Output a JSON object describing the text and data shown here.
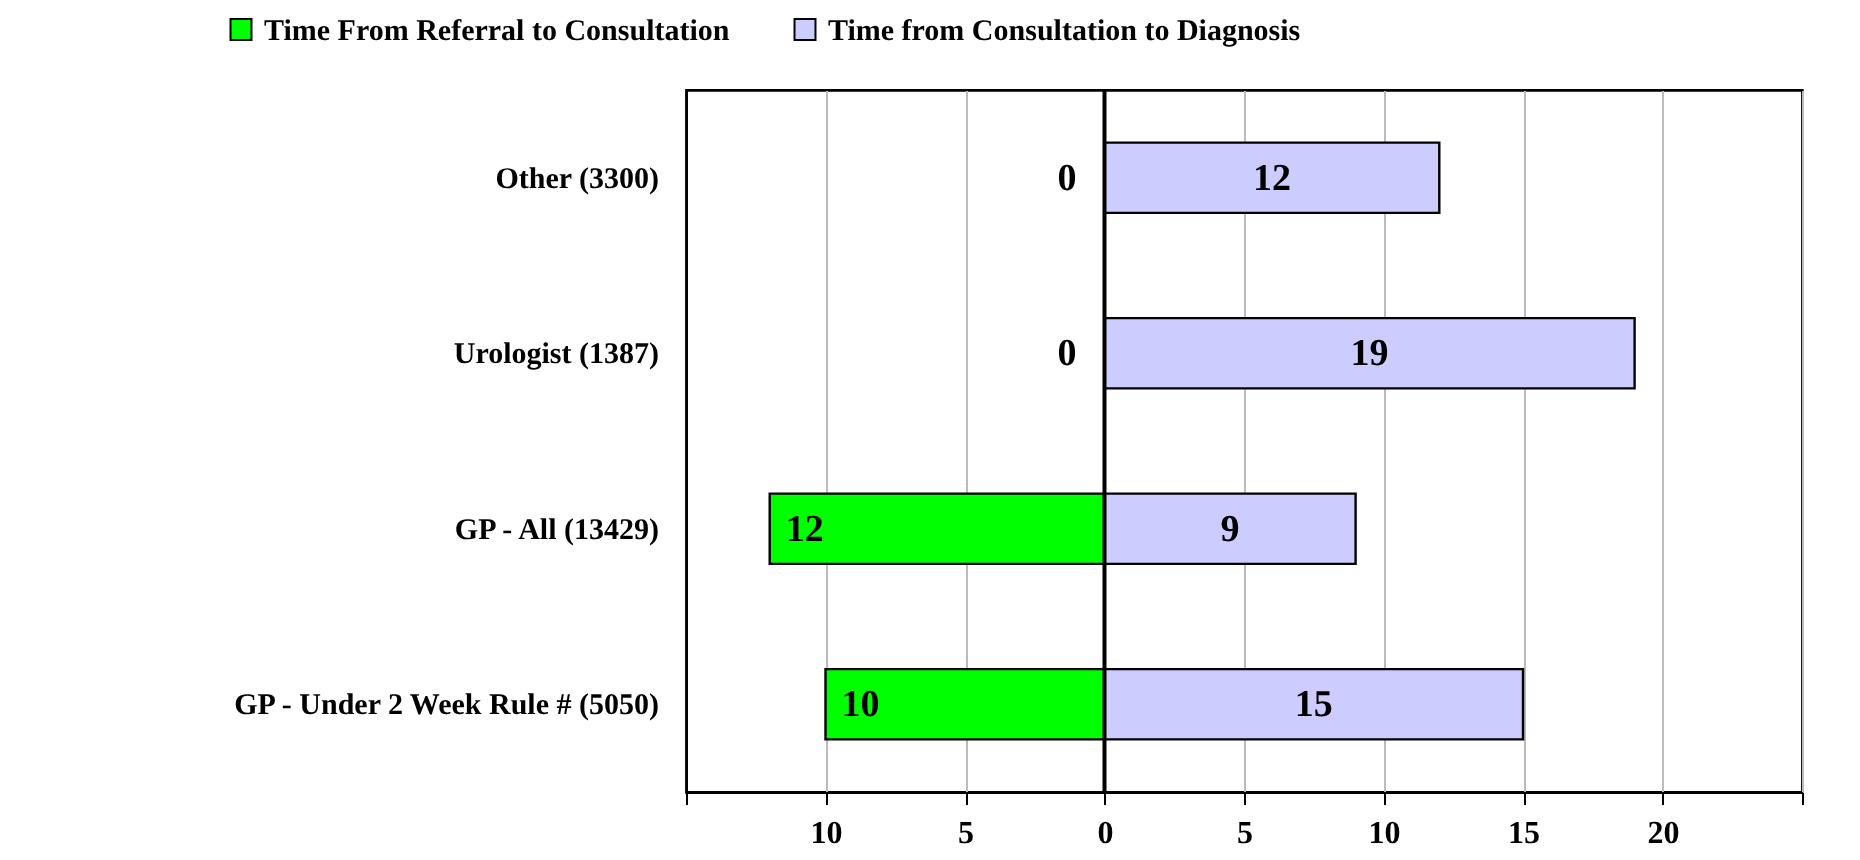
{
  "chart_data": {
    "type": "bar",
    "orientation": "horizontal",
    "categories": [
      "Other (3300)",
      "Urologist (1387)",
      "GP - All (13429)",
      "GP - Under 2 Week Rule # (5050)"
    ],
    "series": [
      {
        "name": "Time From Referral to Consultation",
        "color": "#00ff00",
        "base": [
          null,
          null,
          -12,
          -10
        ],
        "values": [
          0,
          0,
          12,
          10
        ],
        "value_labels": [
          "0",
          "0",
          "12",
          "10"
        ]
      },
      {
        "name": "Time from Consultation to Diagnosis",
        "color": "#ccccff",
        "values": [
          12,
          19,
          9,
          15
        ],
        "value_labels": [
          "12",
          "19",
          "9",
          "15"
        ]
      }
    ],
    "xlim": [
      -15,
      25
    ],
    "xticks": [
      {
        "value": -15,
        "label": null
      },
      {
        "value": -10,
        "label": "10"
      },
      {
        "value": -5,
        "label": "5"
      },
      0,
      5,
      10,
      15,
      20,
      {
        "value": 25,
        "label": null
      }
    ],
    "ref_lines": [
      {
        "axis": "x",
        "value": 0
      }
    ],
    "grid": "x",
    "legend": "top"
  }
}
